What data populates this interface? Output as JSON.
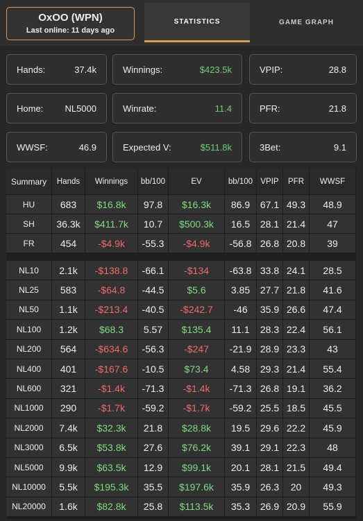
{
  "header": {
    "player_name": "OxOO (WPN)",
    "last_online": "Last online: 11 days ago",
    "tabs": [
      "STATISTICS",
      "GAME GRAPH"
    ]
  },
  "stats": [
    {
      "label": "Hands:",
      "value": "37.4k"
    },
    {
      "label": "Winnings:",
      "value": "$423.5k",
      "color": "#6fcf6f"
    },
    {
      "label": "VPIP:",
      "value": "28.8"
    },
    {
      "label": "Home:",
      "value": "NL5000"
    },
    {
      "label": "Winrate:",
      "value": "11.4",
      "color": "#6fcf6f"
    },
    {
      "label": "PFR:",
      "value": "21.8"
    },
    {
      "label": "WWSF:",
      "value": "46.9"
    },
    {
      "label": "Expected V:",
      "value": "$511.8k",
      "color": "#6fcf6f"
    },
    {
      "label": "3Bet:",
      "value": "9.1"
    }
  ],
  "table": {
    "positive_color": "#7fdc7f",
    "negative_color": "#f06a6a",
    "columns": [
      "Summary",
      "Hands",
      "Winnings",
      "bb/100",
      "EV",
      "bb/100",
      "VPIP",
      "PFR",
      "WWSF"
    ],
    "summary_rows": [
      [
        "HU",
        "683",
        "$16.8k",
        "97.8",
        "$16.3k",
        "86.9",
        "67.1",
        "49.3",
        "48.9"
      ],
      [
        "SH",
        "36.3k",
        "$411.7k",
        "10.7",
        "$500.3k",
        "16.5",
        "28.1",
        "21.4",
        "47"
      ],
      [
        "FR",
        "454",
        "-$4.9k",
        "-55.3",
        "-$4.9k",
        "-56.8",
        "26.8",
        "20.8",
        "39"
      ]
    ],
    "stake_rows": [
      [
        "NL10",
        "2.1k",
        "-$138.8",
        "-66.1",
        "-$134",
        "-63.8",
        "33.8",
        "24.1",
        "28.5"
      ],
      [
        "NL25",
        "583",
        "-$64.8",
        "-44.5",
        "$5.6",
        "3.85",
        "27.7",
        "21.8",
        "41.6"
      ],
      [
        "NL50",
        "1.1k",
        "-$213.4",
        "-40.5",
        "-$242.7",
        "-46",
        "35.9",
        "26.6",
        "47.4"
      ],
      [
        "NL100",
        "1.2k",
        "$68.3",
        "5.57",
        "$135.4",
        "11.1",
        "28.3",
        "22.4",
        "56.1"
      ],
      [
        "NL200",
        "564",
        "-$634.6",
        "-56.3",
        "-$247",
        "-21.9",
        "28.9",
        "23.3",
        "43"
      ],
      [
        "NL400",
        "401",
        "-$167.6",
        "-10.5",
        "$73.4",
        "4.58",
        "29.3",
        "21.4",
        "55.4"
      ],
      [
        "NL600",
        "321",
        "-$1.4k",
        "-71.3",
        "-$1.4k",
        "-71.3",
        "26.8",
        "19.1",
        "36.2"
      ],
      [
        "NL1000",
        "290",
        "-$1.7k",
        "-59.2",
        "-$1.7k",
        "-59.2",
        "25.5",
        "18.5",
        "45.5"
      ],
      [
        "NL2000",
        "7.4k",
        "$32.3k",
        "21.8",
        "$28.8k",
        "19.5",
        "29.6",
        "22.2",
        "45.9"
      ],
      [
        "NL3000",
        "6.5k",
        "$53.8k",
        "27.6",
        "$76.2k",
        "39.1",
        "29.1",
        "22.3",
        "48"
      ],
      [
        "NL5000",
        "9.9k",
        "$63.5k",
        "12.9",
        "$99.1k",
        "20.1",
        "28.1",
        "21.5",
        "49.4"
      ],
      [
        "NL10000",
        "5.5k",
        "$195.3k",
        "35.5",
        "$197.6k",
        "35.9",
        "26.3",
        "20",
        "49.3"
      ],
      [
        "NL20000",
        "1.6k",
        "$82.8k",
        "25.8",
        "$113.5k",
        "35.3",
        "26.9",
        "20.9",
        "55.9"
      ]
    ]
  }
}
